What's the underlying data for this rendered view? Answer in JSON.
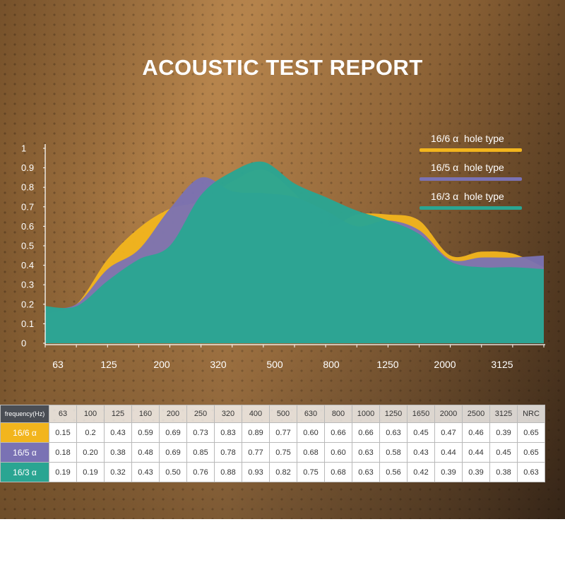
{
  "title": "ACOUSTIC TEST REPORT",
  "colors": {
    "yellow": "#f2b51d",
    "purple": "#7a72b4",
    "teal": "#2aa592",
    "axis": "#ffffff",
    "rowhead_bg": "#4a4e55"
  },
  "chart_data": {
    "type": "area",
    "title": "ACOUSTIC TEST REPORT",
    "x_tick_labels": [
      "63",
      "125",
      "200",
      "320",
      "500",
      "800",
      "1250",
      "2000",
      "3125"
    ],
    "y_tick_labels": [
      "0",
      "0.1",
      "0.2",
      "0.3",
      "0.4",
      "0.5",
      "0.6",
      "0.7",
      "0.8",
      "0.9",
      "1"
    ],
    "ylim": [
      0,
      1
    ],
    "categories": [
      "63",
      "100",
      "125",
      "160",
      "200",
      "250",
      "320",
      "400",
      "500",
      "630",
      "800",
      "1000",
      "1250",
      "1650",
      "2000",
      "2500",
      "3125"
    ],
    "series": [
      {
        "name": "16/6 α hole type",
        "label_num": "16/6",
        "label_alpha": "α",
        "label_text": "hole type",
        "color": "#f2b51d",
        "values": [
          0.15,
          0.2,
          0.43,
          0.59,
          0.69,
          0.73,
          0.83,
          0.89,
          0.77,
          0.6,
          0.66,
          0.66,
          0.63,
          0.45,
          0.47,
          0.46,
          0.39
        ],
        "nrc": "0.65"
      },
      {
        "name": "16/5 α hole type",
        "label_num": "16/5",
        "label_alpha": "α",
        "label_text": "hole type",
        "color": "#7a72b4",
        "values": [
          0.18,
          0.2,
          0.38,
          0.48,
          0.69,
          0.85,
          0.78,
          0.77,
          0.75,
          0.68,
          0.6,
          0.63,
          0.58,
          0.43,
          0.44,
          0.44,
          0.45
        ],
        "nrc": "0.65"
      },
      {
        "name": "16/3 α hole type",
        "label_num": "16/3",
        "label_alpha": "α",
        "label_text": "hole type",
        "color": "#2aa592",
        "values": [
          0.19,
          0.19,
          0.32,
          0.43,
          0.5,
          0.76,
          0.88,
          0.93,
          0.82,
          0.75,
          0.68,
          0.63,
          0.56,
          0.42,
          0.39,
          0.39,
          0.38
        ],
        "nrc": "0.63"
      }
    ],
    "legend_position": "top-right",
    "grid": false
  },
  "table": {
    "header_label": "frequency(Hz)",
    "columns": [
      "63",
      "100",
      "125",
      "160",
      "200",
      "250",
      "320",
      "400",
      "500",
      "630",
      "800",
      "1000",
      "1250",
      "1650",
      "2000",
      "2500",
      "3125",
      "NRC"
    ],
    "rows": [
      {
        "label": "16/6",
        "alpha": "α",
        "cells": [
          "0.15",
          "0.2",
          "0.43",
          "0.59",
          "0.69",
          "0.73",
          "0.83",
          "0.89",
          "0.77",
          "0.60",
          "0.66",
          "0.66",
          "0.63",
          "0.45",
          "0.47",
          "0.46",
          "0.39",
          "0.65"
        ]
      },
      {
        "label": "16/5",
        "alpha": "α",
        "cells": [
          "0.18",
          "0.20",
          "0.38",
          "0.48",
          "0.69",
          "0.85",
          "0.78",
          "0.77",
          "0.75",
          "0.68",
          "0.60",
          "0.63",
          "0.58",
          "0.43",
          "0.44",
          "0.44",
          "0.45",
          "0.65"
        ]
      },
      {
        "label": "16/3",
        "alpha": "α",
        "cells": [
          "0.19",
          "0.19",
          "0.32",
          "0.43",
          "0.50",
          "0.76",
          "0.88",
          "0.93",
          "0.82",
          "0.75",
          "0.68",
          "0.63",
          "0.56",
          "0.42",
          "0.39",
          "0.39",
          "0.38",
          "0.63"
        ]
      }
    ]
  }
}
